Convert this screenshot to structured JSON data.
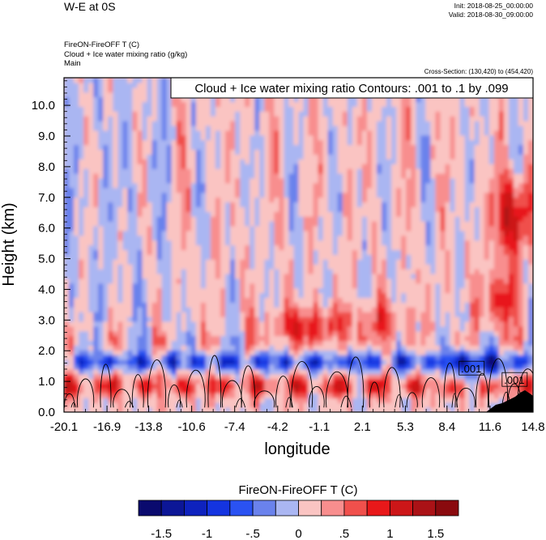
{
  "chart_data": {
    "type": "heatmap",
    "title_left": "W-E at 0S",
    "init_text": "Init: 2018-08-25_00:00:00",
    "valid_text": "Valid: 2018-08-30_09:00:00",
    "field_line_1": "FireON-FireOFF T   (C)",
    "field_line_2": "Cloud + Ice water mixing ratio   (g/kg)",
    "field_line_3": "Main",
    "cross_section_text": "Cross-Section: (130,420) to (454,420)",
    "contour_info": "Cloud + Ice water mixing ratio Contours: .001 to .1 by .099",
    "xlabel": "longitude",
    "ylabel": "Height (km)",
    "xlim": [
      -20.1,
      14.8
    ],
    "ylim": [
      0.0,
      10.9
    ],
    "x_ticks": [
      "-20.1",
      "-16.9",
      "-13.8",
      "-10.6",
      "-7.4",
      "-4.2",
      "-1.1",
      "2.1",
      "5.3",
      "8.4",
      "11.6",
      "14.8"
    ],
    "y_ticks": [
      "0.0",
      "1.0",
      "2.0",
      "3.0",
      "4.0",
      "5.0",
      "6.0",
      "7.0",
      "8.0",
      "9.0",
      "10.0"
    ],
    "contour_labels": [
      {
        "text": ".001",
        "lon": 10.2,
        "height": 1.42
      },
      {
        "text": ".001",
        "lon": 13.4,
        "height": 1.05
      }
    ],
    "colorbar": {
      "title": "FireON-FireOFF T  (C)",
      "colors": [
        "#0a0a6e",
        "#0c1696",
        "#0e22be",
        "#1434e0",
        "#2a52f2",
        "#6a82ec",
        "#aab6f2",
        "#fac4c2",
        "#f88e8e",
        "#f0504c",
        "#e8181a",
        "#cc1618",
        "#aa1216",
        "#8a0a0e"
      ],
      "tick_labels": [
        "-1.5",
        "-1",
        "-.5",
        "0",
        ".5",
        "1",
        "1.5"
      ]
    }
  }
}
